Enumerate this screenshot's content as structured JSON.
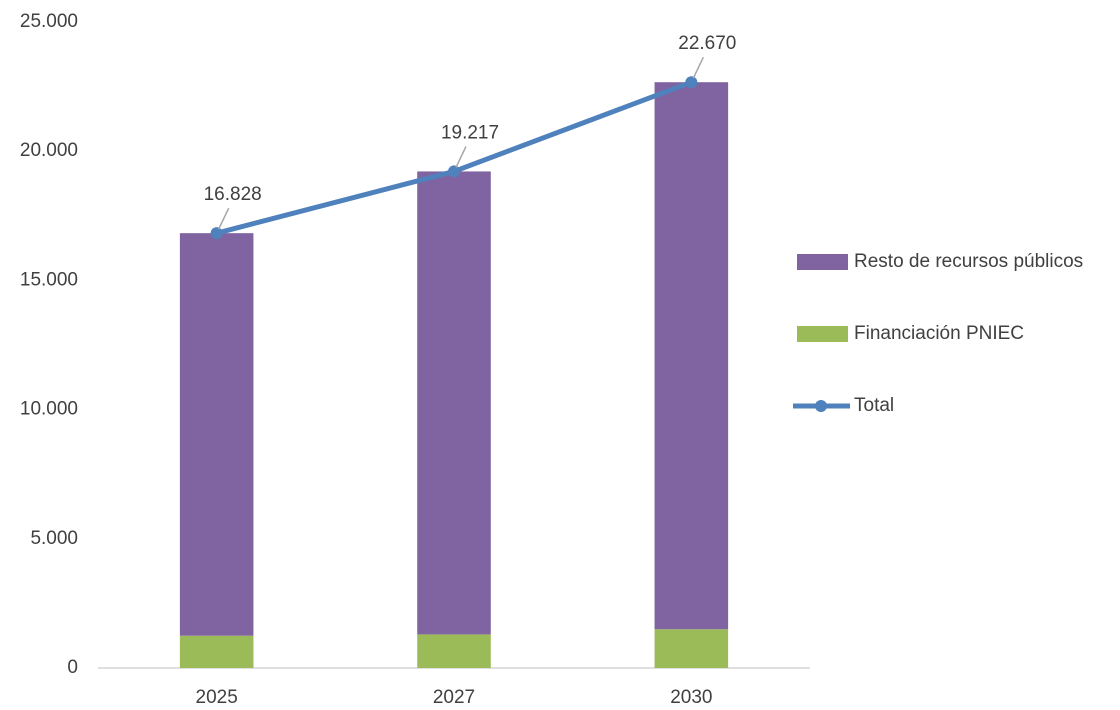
{
  "chart_data": {
    "type": "bar",
    "stacked": true,
    "categories": [
      "2025",
      "2027",
      "2030"
    ],
    "series": [
      {
        "name": "Financiación PNIEC",
        "color": "#9bbb59",
        "values": [
          1250,
          1300,
          1500
        ]
      },
      {
        "name": "Resto de recursos públicos",
        "color": "#8064a2",
        "values": [
          15578,
          17917,
          21170
        ]
      },
      {
        "name": "Total",
        "color": "#4f81bd",
        "type": "line",
        "values": [
          16828,
          19217,
          22670
        ],
        "value_labels": [
          "16.828",
          "19.217",
          "22.670"
        ]
      }
    ],
    "ylim": [
      0,
      25000
    ],
    "yticks": [
      0,
      {
        "value": 5000,
        "label": "5.000"
      },
      {
        "value": 10000,
        "label": "10.000"
      },
      {
        "value": 15000,
        "label": "15.000"
      },
      {
        "value": 20000,
        "label": "20.000"
      },
      {
        "value": 25000,
        "label": "25.000"
      }
    ],
    "grid": false,
    "legend": "right"
  }
}
